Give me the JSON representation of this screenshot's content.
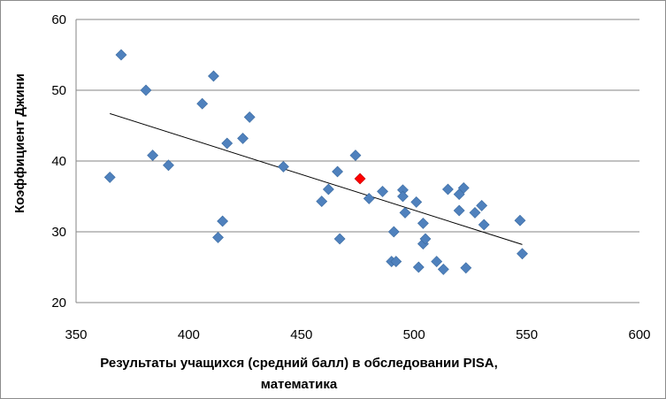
{
  "chart_data": {
    "type": "scatter",
    "title": "",
    "xlabel_lines": [
      "Результаты учащихся (средний балл) в обследовании PISA,",
      "математика"
    ],
    "ylabel": "Коэффициент Джини",
    "xlim": [
      350,
      600
    ],
    "ylim": [
      20,
      60
    ],
    "x_ticks": [
      350,
      400,
      450,
      500,
      550,
      600
    ],
    "y_ticks": [
      20,
      30,
      40,
      50,
      60
    ],
    "grid": "horizontal",
    "legend": "none",
    "colors": {
      "points": "#4f81bd",
      "highlight": "#ff0000",
      "trend": "#000000",
      "grid": "#868686"
    },
    "series": [
      {
        "x": [
          365,
          370,
          381,
          384,
          391,
          406,
          411,
          413,
          415,
          417,
          424,
          427,
          442,
          459,
          462,
          466,
          467,
          474,
          480,
          486,
          490,
          491,
          492,
          495,
          495,
          496,
          501,
          502,
          504,
          504,
          505,
          510,
          513,
          515,
          520,
          520,
          522,
          523,
          527,
          530,
          531,
          547,
          548
        ],
        "y": [
          37.7,
          55,
          50,
          40.8,
          39.4,
          48.1,
          52,
          29.2,
          31.5,
          42.5,
          43.2,
          46.2,
          39.2,
          34.3,
          36,
          38.5,
          29,
          40.8,
          34.7,
          35.7,
          25.8,
          30,
          25.8,
          35.9,
          35,
          32.7,
          34.2,
          25,
          31.2,
          28.3,
          29,
          25.8,
          24.7,
          36,
          35.3,
          33,
          36.2,
          24.9,
          32.7,
          33.7,
          31,
          31.6,
          26.9
        ]
      },
      {
        "highlight": true,
        "x": [
          476
        ],
        "y": [
          37.5
        ]
      }
    ],
    "trendline": {
      "x": [
        365,
        548
      ],
      "y": [
        46.7,
        28.2
      ]
    }
  }
}
